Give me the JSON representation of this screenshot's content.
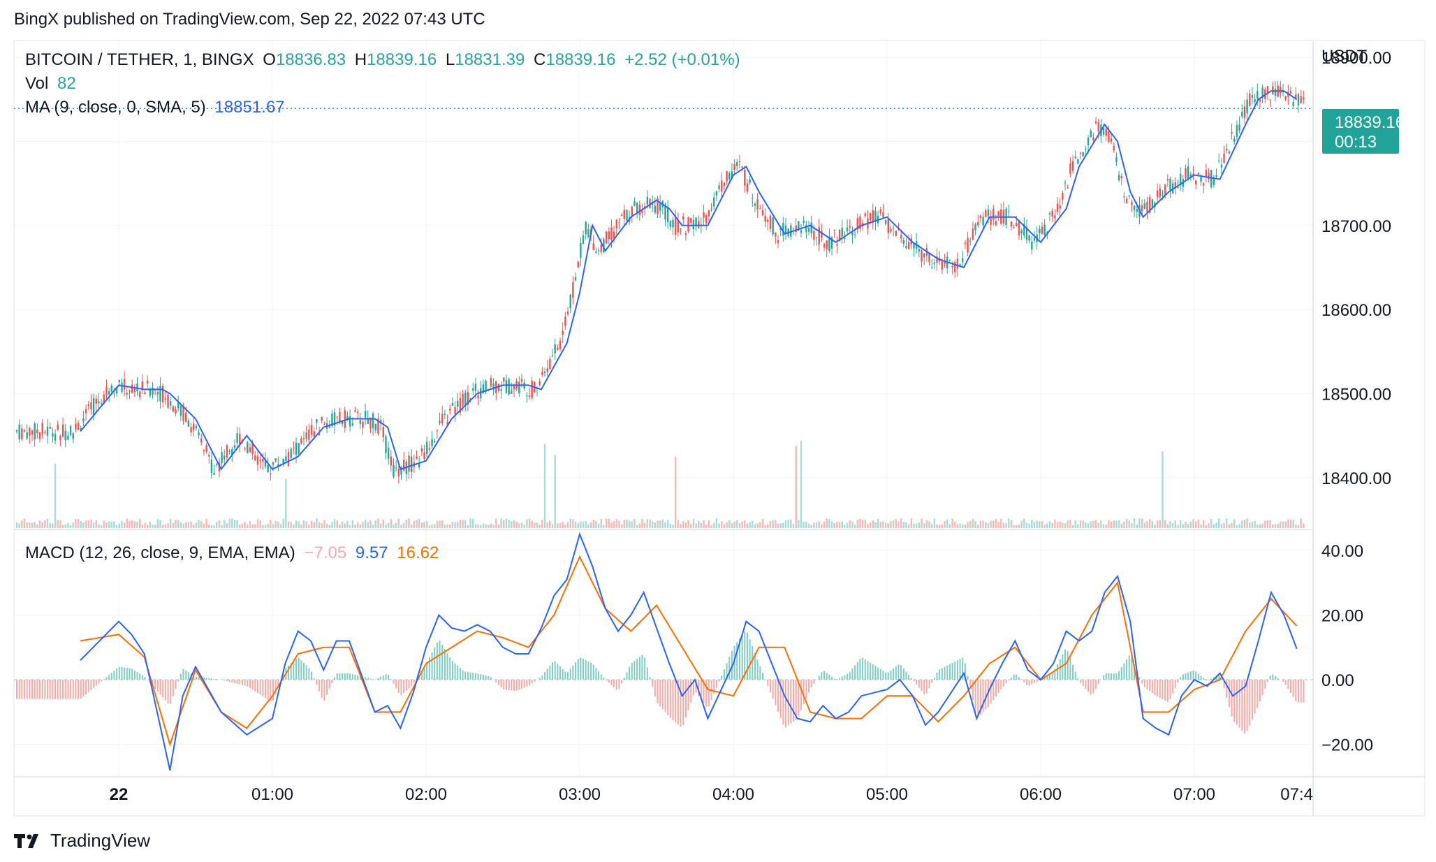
{
  "header": {
    "text": "BingX published on TradingView.com, Sep 22, 2022 07:43 UTC"
  },
  "legend": {
    "symbol": "BITCOIN / TETHER, 1, BINGX",
    "o_label": "O",
    "o_value": "18836.83",
    "h_label": "H",
    "h_value": "18839.16",
    "l_label": "L",
    "l_value": "18831.39",
    "c_label": "C",
    "c_value": "18839.16",
    "change": "+2.52 (+0.01%)",
    "vol_label": "Vol",
    "vol_value": "82",
    "ma_label": "MA (9, close, 0, SMA, 5)",
    "ma_value": "18851.67",
    "macd_label": "MACD (12, 26, close, 9, EMA, EMA)",
    "macd_hist": "−7.05",
    "macd_value": "9.57",
    "macd_signal": "16.62"
  },
  "price_axis": {
    "currency": "USDT",
    "ticks": [
      "18900.00",
      "18800.00",
      "18700.00",
      "18600.00",
      "18500.00",
      "18400.00"
    ],
    "last_price": "18839.16",
    "countdown": "00:13"
  },
  "macd_axis": {
    "ticks": [
      "40.00",
      "20.00",
      "0.00",
      "−20.00"
    ]
  },
  "time_axis": {
    "ticks": [
      "22",
      "01:00",
      "02:00",
      "03:00",
      "04:00",
      "05:00",
      "06:00",
      "07:00",
      "07:4"
    ]
  },
  "footer": {
    "brand": "TradingView"
  },
  "colors": {
    "up": "#26a69a",
    "down": "#ef5350",
    "ma": "#2962ff",
    "macd": "#2962ff",
    "signal": "#ff6d00",
    "grid": "#f0f3fa"
  },
  "chart_data": [
    {
      "type": "candlestick",
      "title": "BITCOIN / TETHER, 1, BINGX",
      "ylabel": "USDT",
      "ylim": [
        18340,
        18920
      ],
      "x": [
        "00:00",
        "01:00",
        "02:00",
        "03:00",
        "04:00",
        "05:00",
        "06:00",
        "07:00",
        "07:43"
      ],
      "series": [
        {
          "name": "MA (9, close, 0, SMA, 5)",
          "type": "line",
          "x": [
            "23:45",
            "00:00",
            "00:10",
            "00:17",
            "00:20",
            "00:30",
            "00:40",
            "00:50",
            "01:00",
            "01:10",
            "01:20",
            "01:30",
            "01:40",
            "01:45",
            "01:50",
            "02:00",
            "02:10",
            "02:20",
            "02:30",
            "02:40",
            "02:45",
            "02:55",
            "03:00",
            "03:05",
            "03:10",
            "03:20",
            "03:30",
            "03:35",
            "03:40",
            "03:50",
            "04:00",
            "04:05",
            "04:10",
            "04:20",
            "04:30",
            "04:40",
            "04:50",
            "05:00",
            "05:10",
            "05:20",
            "05:30",
            "05:40",
            "05:50",
            "06:00",
            "06:10",
            "06:15",
            "06:25",
            "06:30",
            "06:35",
            "06:40",
            "06:50",
            "07:00",
            "07:10",
            "07:20",
            "07:25",
            "07:30",
            "07:35",
            "07:40"
          ],
          "values": [
            18455,
            18510,
            18505,
            18505,
            18500,
            18470,
            18410,
            18450,
            18410,
            18425,
            18460,
            18470,
            18470,
            18460,
            18410,
            18420,
            18470,
            18500,
            18510,
            18510,
            18505,
            18560,
            18620,
            18700,
            18670,
            18710,
            18730,
            18720,
            18700,
            18700,
            18760,
            18770,
            18740,
            18690,
            18700,
            18680,
            18700,
            18710,
            18680,
            18660,
            18650,
            18710,
            18710,
            18680,
            18720,
            18770,
            18820,
            18800,
            18740,
            18710,
            18740,
            18760,
            18755,
            18820,
            18850,
            18860,
            18860,
            18850
          ]
        },
        {
          "name": "Vol",
          "type": "bar",
          "last_value": 82
        },
        {
          "name": "MACD",
          "type": "line",
          "x": [
            "23:45",
            "00:00",
            "00:05",
            "00:10",
            "00:15",
            "00:20",
            "00:25",
            "00:30",
            "00:40",
            "00:50",
            "01:00",
            "01:05",
            "01:10",
            "01:15",
            "01:20",
            "01:25",
            "01:30",
            "01:40",
            "01:45",
            "01:50",
            "01:55",
            "02:00",
            "02:05",
            "02:10",
            "02:15",
            "02:20",
            "02:25",
            "02:30",
            "02:35",
            "02:40",
            "02:45",
            "02:50",
            "02:55",
            "03:00",
            "03:05",
            "03:10",
            "03:15",
            "03:20",
            "03:25",
            "03:30",
            "03:35",
            "03:40",
            "03:45",
            "03:50",
            "04:00",
            "04:05",
            "04:10",
            "04:15",
            "04:20",
            "04:25",
            "04:30",
            "04:35",
            "04:40",
            "04:45",
            "04:50",
            "05:00",
            "05:05",
            "05:10",
            "05:15",
            "05:20",
            "05:25",
            "05:30",
            "05:35",
            "05:40",
            "05:45",
            "05:50",
            "05:55",
            "06:00",
            "06:05",
            "06:10",
            "06:15",
            "06:20",
            "06:25",
            "06:30",
            "06:35",
            "06:40",
            "06:45",
            "06:50",
            "06:55",
            "07:00",
            "07:05",
            "07:10",
            "07:15",
            "07:20",
            "07:25",
            "07:30",
            "07:35",
            "07:40"
          ],
          "values": [
            6,
            18,
            14,
            8,
            -10,
            -28,
            -5,
            4,
            -10,
            -17,
            -12,
            5,
            15,
            12,
            3,
            12,
            12,
            -10,
            -8,
            -15,
            -4,
            10,
            20,
            16,
            15,
            17,
            15,
            10,
            8,
            8,
            16,
            26,
            31,
            45,
            35,
            22,
            15,
            20,
            27,
            16,
            5,
            -5,
            0,
            -12,
            5,
            18,
            15,
            5,
            -5,
            -12,
            -13,
            -8,
            -12,
            -10,
            -5,
            -3,
            0,
            -5,
            -14,
            -10,
            -4,
            2,
            -12,
            -3,
            5,
            12,
            3,
            0,
            5,
            15,
            12,
            15,
            27,
            32,
            18,
            -12,
            -15,
            -17,
            -5,
            0,
            -2,
            2,
            -5,
            -2,
            12,
            27,
            20,
            9.57
          ]
        },
        {
          "name": "Signal",
          "type": "line",
          "x": [
            "23:45",
            "00:00",
            "00:10",
            "00:20",
            "00:30",
            "00:40",
            "00:50",
            "01:00",
            "01:10",
            "01:20",
            "01:30",
            "01:40",
            "01:50",
            "02:00",
            "02:10",
            "02:20",
            "02:30",
            "02:40",
            "02:50",
            "03:00",
            "03:10",
            "03:20",
            "03:30",
            "03:40",
            "03:50",
            "04:00",
            "04:10",
            "04:20",
            "04:30",
            "04:40",
            "04:50",
            "05:00",
            "05:10",
            "05:20",
            "05:30",
            "05:40",
            "05:50",
            "06:00",
            "06:10",
            "06:20",
            "06:30",
            "06:40",
            "06:50",
            "07:00",
            "07:10",
            "07:20",
            "07:30",
            "07:40"
          ],
          "values": [
            12,
            14,
            7,
            -20,
            3,
            -10,
            -15,
            -5,
            8,
            10,
            10,
            -10,
            -10,
            5,
            10,
            15,
            13,
            10,
            20,
            38,
            22,
            15,
            23,
            10,
            -3,
            -5,
            10,
            10,
            -10,
            -12,
            -12,
            -5,
            -5,
            -13,
            -5,
            5,
            10,
            0,
            5,
            20,
            30,
            -10,
            -10,
            -3,
            0,
            15,
            25,
            16.62
          ]
        },
        {
          "name": "Histogram",
          "type": "bar",
          "last_value": -7.05
        }
      ],
      "macd_ylim": [
        -30,
        46
      ],
      "grid": true
    }
  ]
}
